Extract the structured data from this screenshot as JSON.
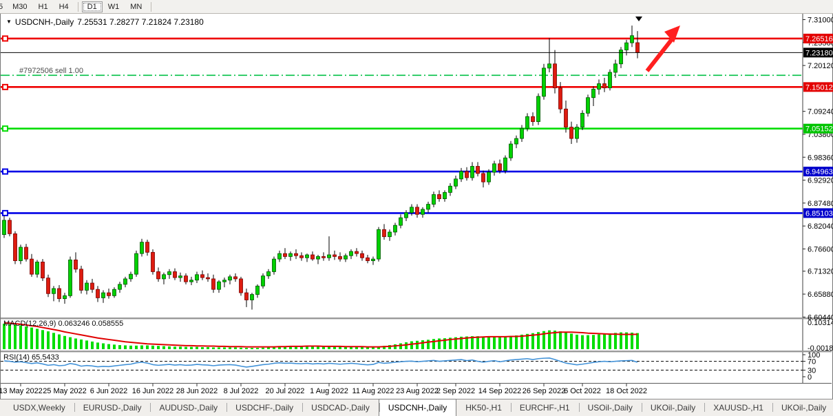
{
  "toolbar": {
    "timeframes": [
      "5",
      "M30",
      "H1",
      "H4",
      "D1",
      "W1",
      "MN"
    ],
    "active_timeframe": "D1"
  },
  "chart": {
    "title": "USDCNH-,Daily",
    "ohlc_display": "7.25531 7.28277 7.21824 7.23180",
    "order_label": "#7972506 sell 1.00",
    "price_axis_ticks": [
      "7.31000",
      "7.25560",
      "7.20120",
      "7.09240",
      "7.03800",
      "6.98360",
      "6.92920",
      "6.87480",
      "6.82040",
      "6.76600",
      "6.71320",
      "6.65880",
      "6.60440"
    ],
    "current_price": {
      "label": "7.23180",
      "price": 7.2318,
      "badge_bg": "#000000",
      "line_color": "#000000"
    },
    "levels": [
      {
        "label": "7.26516",
        "price": 7.26516,
        "color": "#ee0000",
        "badge_bg": "#e30000"
      },
      {
        "label": "7.15012",
        "price": 7.15012,
        "color": "#ee0000",
        "badge_bg": "#e30000"
      },
      {
        "label": "7.05152",
        "price": 7.05152,
        "color": "#00dd00",
        "badge_bg": "#00c400"
      },
      {
        "label": "6.94963",
        "price": 6.94963,
        "color": "#0000e6",
        "badge_bg": "#0000cc"
      },
      {
        "label": "6.85103",
        "price": 6.85103,
        "color": "#0000e6",
        "badge_bg": "#0000cc"
      }
    ],
    "order_line": {
      "price": 7.178,
      "color": "#00c044",
      "style": "dashdot"
    }
  },
  "chart_data": {
    "type": "candlestick",
    "symbol": "USDCNH-",
    "timeframe": "Daily",
    "title": "USDCNH-,Daily 7.25531 7.28277 7.21824 7.23180",
    "last_candle": {
      "open": 7.25531,
      "high": 7.28277,
      "low": 7.21824,
      "close": 7.2318
    },
    "y_axis_range": [
      6.6044,
      7.31
    ],
    "up_color": "#00d000",
    "down_color": "#dd1c10",
    "wick_color": "#000000",
    "date_labels": [
      {
        "index": 3,
        "text": "13 May 2022"
      },
      {
        "index": 11,
        "text": "25 May 2022"
      },
      {
        "index": 19,
        "text": "6 Jun 2022"
      },
      {
        "index": 27,
        "text": "16 Jun 2022"
      },
      {
        "index": 35,
        "text": "28 Jun 2022"
      },
      {
        "index": 43,
        "text": "8 Jul 2022"
      },
      {
        "index": 51,
        "text": "20 Jul 2022"
      },
      {
        "index": 59,
        "text": "1 Aug 2022"
      },
      {
        "index": 67,
        "text": "11 Aug 2022"
      },
      {
        "index": 75,
        "text": "23 Aug 2022"
      },
      {
        "index": 82,
        "text": "2 Sep 2022"
      },
      {
        "index": 90,
        "text": "14 Sep 2022"
      },
      {
        "index": 98,
        "text": "26 Sep 2022"
      },
      {
        "index": 105,
        "text": "6 Oct 2022"
      },
      {
        "index": 113,
        "text": "18 Oct 2022"
      }
    ],
    "candles": [
      [
        6.8,
        6.845,
        6.792,
        6.834
      ],
      [
        6.834,
        6.84,
        6.796,
        6.802
      ],
      [
        6.802,
        6.808,
        6.73,
        6.738
      ],
      [
        6.738,
        6.776,
        6.73,
        6.77
      ],
      [
        6.77,
        6.778,
        6.736,
        6.742
      ],
      [
        6.742,
        6.754,
        6.7,
        6.706
      ],
      [
        6.706,
        6.74,
        6.698,
        6.735
      ],
      [
        6.735,
        6.742,
        6.69,
        6.697
      ],
      [
        6.697,
        6.705,
        6.652,
        6.66
      ],
      [
        6.66,
        6.678,
        6.642,
        6.672
      ],
      [
        6.672,
        6.68,
        6.64,
        6.648
      ],
      [
        6.648,
        6.662,
        6.636,
        6.655
      ],
      [
        6.655,
        6.748,
        6.65,
        6.74
      ],
      [
        6.74,
        6.758,
        6.71,
        6.718
      ],
      [
        6.718,
        6.726,
        6.66,
        6.668
      ],
      [
        6.668,
        6.692,
        6.658,
        6.685
      ],
      [
        6.685,
        6.695,
        6.662,
        6.67
      ],
      [
        6.67,
        6.678,
        6.64,
        6.65
      ],
      [
        6.65,
        6.668,
        6.638,
        6.662
      ],
      [
        6.662,
        6.672,
        6.648,
        6.655
      ],
      [
        6.655,
        6.675,
        6.65,
        6.67
      ],
      [
        6.67,
        6.688,
        6.662,
        6.682
      ],
      [
        6.682,
        6.7,
        6.675,
        6.695
      ],
      [
        6.695,
        6.712,
        6.688,
        6.706
      ],
      [
        6.706,
        6.762,
        6.7,
        6.755
      ],
      [
        6.755,
        6.79,
        6.748,
        6.782
      ],
      [
        6.782,
        6.788,
        6.75,
        6.758
      ],
      [
        6.758,
        6.765,
        6.705,
        6.712
      ],
      [
        6.712,
        6.722,
        6.688,
        6.695
      ],
      [
        6.695,
        6.71,
        6.682,
        6.705
      ],
      [
        6.705,
        6.718,
        6.695,
        6.712
      ],
      [
        6.712,
        6.72,
        6.692,
        6.698
      ],
      [
        6.698,
        6.71,
        6.688,
        6.702
      ],
      [
        6.702,
        6.708,
        6.682,
        6.688
      ],
      [
        6.688,
        6.7,
        6.68,
        6.692
      ],
      [
        6.692,
        6.712,
        6.685,
        6.705
      ],
      [
        6.705,
        6.715,
        6.692,
        6.698
      ],
      [
        6.698,
        6.708,
        6.688,
        6.695
      ],
      [
        6.695,
        6.705,
        6.662,
        6.67
      ],
      [
        6.67,
        6.692,
        6.662,
        6.688
      ],
      [
        6.688,
        6.698,
        6.675,
        6.692
      ],
      [
        6.692,
        6.705,
        6.682,
        6.7
      ],
      [
        6.7,
        6.708,
        6.688,
        6.695
      ],
      [
        6.695,
        6.7,
        6.655,
        6.662
      ],
      [
        6.662,
        6.672,
        6.628,
        6.645
      ],
      [
        6.645,
        6.662,
        6.622,
        6.658
      ],
      [
        6.658,
        6.682,
        6.65,
        6.678
      ],
      [
        6.678,
        6.708,
        6.672,
        6.702
      ],
      [
        6.702,
        6.718,
        6.695,
        6.712
      ],
      [
        6.712,
        6.748,
        6.705,
        6.742
      ],
      [
        6.742,
        6.762,
        6.735,
        6.755
      ],
      [
        6.755,
        6.768,
        6.742,
        6.748
      ],
      [
        6.748,
        6.76,
        6.738,
        6.755
      ],
      [
        6.755,
        6.765,
        6.742,
        6.75
      ],
      [
        6.75,
        6.758,
        6.738,
        6.745
      ],
      [
        6.745,
        6.755,
        6.735,
        6.752
      ],
      [
        6.752,
        6.76,
        6.738,
        6.742
      ],
      [
        6.742,
        6.752,
        6.73,
        6.748
      ],
      [
        6.748,
        6.758,
        6.738,
        6.745
      ],
      [
        6.745,
        6.796,
        6.738,
        6.752
      ],
      [
        6.752,
        6.762,
        6.74,
        6.748
      ],
      [
        6.748,
        6.758,
        6.736,
        6.742
      ],
      [
        6.742,
        6.755,
        6.735,
        6.75
      ],
      [
        6.75,
        6.765,
        6.742,
        6.76
      ],
      [
        6.76,
        6.768,
        6.748,
        6.755
      ],
      [
        6.755,
        6.762,
        6.738,
        6.745
      ],
      [
        6.745,
        6.752,
        6.732,
        6.738
      ],
      [
        6.738,
        6.748,
        6.728,
        6.742
      ],
      [
        6.742,
        6.818,
        6.736,
        6.812
      ],
      [
        6.812,
        6.825,
        6.788,
        6.795
      ],
      [
        6.795,
        6.812,
        6.785,
        6.806
      ],
      [
        6.806,
        6.828,
        6.798,
        6.822
      ],
      [
        6.822,
        6.848,
        6.815,
        6.84
      ],
      [
        6.84,
        6.858,
        6.832,
        6.852
      ],
      [
        6.852,
        6.872,
        6.845,
        6.865
      ],
      [
        6.865,
        6.872,
        6.84,
        6.848
      ],
      [
        6.848,
        6.865,
        6.84,
        6.86
      ],
      [
        6.86,
        6.878,
        6.852,
        6.872
      ],
      [
        6.872,
        6.902,
        6.865,
        6.895
      ],
      [
        6.895,
        6.905,
        6.878,
        6.885
      ],
      [
        6.885,
        6.905,
        6.878,
        6.9
      ],
      [
        6.9,
        6.922,
        6.892,
        6.915
      ],
      [
        6.915,
        6.94,
        6.908,
        6.932
      ],
      [
        6.932,
        6.958,
        6.925,
        6.95
      ],
      [
        6.95,
        6.96,
        6.928,
        6.935
      ],
      [
        6.935,
        6.972,
        6.928,
        6.962
      ],
      [
        6.962,
        6.972,
        6.938,
        6.945
      ],
      [
        6.945,
        6.952,
        6.912,
        6.925
      ],
      [
        6.925,
        6.955,
        6.918,
        6.948
      ],
      [
        6.948,
        6.975,
        6.94,
        6.968
      ],
      [
        6.968,
        6.978,
        6.945,
        6.952
      ],
      [
        6.952,
        6.988,
        6.945,
        6.982
      ],
      [
        6.982,
        7.022,
        6.975,
        7.015
      ],
      [
        7.015,
        7.035,
        7.005,
        7.028
      ],
      [
        7.028,
        7.06,
        7.02,
        7.052
      ],
      [
        7.052,
        7.088,
        7.045,
        7.08
      ],
      [
        7.08,
        7.09,
        7.058,
        7.068
      ],
      [
        7.068,
        7.135,
        7.06,
        7.128
      ],
      [
        7.128,
        7.205,
        7.12,
        7.195
      ],
      [
        7.195,
        7.266,
        7.185,
        7.205
      ],
      [
        7.205,
        7.238,
        7.135,
        7.148
      ],
      [
        7.148,
        7.162,
        7.088,
        7.098
      ],
      [
        7.098,
        7.118,
        7.042,
        7.055
      ],
      [
        7.055,
        7.068,
        7.015,
        7.028
      ],
      [
        7.028,
        7.062,
        7.018,
        7.055
      ],
      [
        7.055,
        7.095,
        7.048,
        7.088
      ],
      [
        7.088,
        7.132,
        7.08,
        7.125
      ],
      [
        7.125,
        7.152,
        7.105,
        7.145
      ],
      [
        7.145,
        7.168,
        7.132,
        7.158
      ],
      [
        7.158,
        7.172,
        7.138,
        7.148
      ],
      [
        7.148,
        7.192,
        7.142,
        7.185
      ],
      [
        7.185,
        7.215,
        7.172,
        7.205
      ],
      [
        7.205,
        7.245,
        7.195,
        7.238
      ],
      [
        7.238,
        7.262,
        7.225,
        7.255
      ],
      [
        7.255,
        7.296,
        7.245,
        7.272
      ],
      [
        7.25531,
        7.28277,
        7.21824,
        7.2318
      ]
    ],
    "macd": {
      "display": "MACD(12,26,9) 0.063246 0.058555",
      "main_value": 0.063246,
      "signal_value": 0.058555,
      "axis_max": "0.103149",
      "axis_min": "-0.001805",
      "histogram_color": "#00dd00",
      "signal_color": "#e00000",
      "histogram": [
        0.1,
        0.098,
        0.096,
        0.093,
        0.089,
        0.085,
        0.08,
        0.075,
        0.07,
        0.064,
        0.058,
        0.052,
        0.047,
        0.042,
        0.038,
        0.034,
        0.03,
        0.026,
        0.023,
        0.02,
        0.018,
        0.016,
        0.015,
        0.014,
        0.014,
        0.015,
        0.015,
        0.014,
        0.013,
        0.012,
        0.011,
        0.01,
        0.01,
        0.009,
        0.009,
        0.009,
        0.008,
        0.008,
        0.007,
        0.007,
        0.007,
        0.007,
        0.007,
        0.006,
        0.005,
        0.005,
        0.005,
        0.006,
        0.007,
        0.009,
        0.01,
        0.011,
        0.012,
        0.012,
        0.012,
        0.011,
        0.011,
        0.01,
        0.01,
        0.011,
        0.01,
        0.01,
        0.009,
        0.009,
        0.009,
        0.008,
        0.007,
        0.007,
        0.01,
        0.013,
        0.016,
        0.019,
        0.023,
        0.027,
        0.031,
        0.033,
        0.035,
        0.037,
        0.04,
        0.042,
        0.043,
        0.045,
        0.047,
        0.049,
        0.05,
        0.051,
        0.051,
        0.05,
        0.049,
        0.048,
        0.048,
        0.049,
        0.051,
        0.054,
        0.057,
        0.06,
        0.063,
        0.067,
        0.071,
        0.074,
        0.073,
        0.07,
        0.066,
        0.061,
        0.057,
        0.055,
        0.055,
        0.056,
        0.058,
        0.06,
        0.062,
        0.064,
        0.066,
        0.066,
        0.065,
        0.063246
      ],
      "signal": [
        0.103,
        0.102,
        0.1,
        0.098,
        0.095,
        0.092,
        0.089,
        0.085,
        0.081,
        0.077,
        0.073,
        0.068,
        0.064,
        0.06,
        0.056,
        0.052,
        0.048,
        0.044,
        0.041,
        0.038,
        0.035,
        0.032,
        0.029,
        0.027,
        0.025,
        0.023,
        0.021,
        0.02,
        0.019,
        0.018,
        0.017,
        0.016,
        0.015,
        0.014,
        0.014,
        0.013,
        0.013,
        0.012,
        0.012,
        0.011,
        0.011,
        0.01,
        0.01,
        0.01,
        0.009,
        0.009,
        0.009,
        0.009,
        0.009,
        0.009,
        0.01,
        0.01,
        0.011,
        0.011,
        0.011,
        0.012,
        0.012,
        0.012,
        0.011,
        0.011,
        0.011,
        0.011,
        0.01,
        0.01,
        0.01,
        0.01,
        0.009,
        0.009,
        0.009,
        0.01,
        0.011,
        0.013,
        0.015,
        0.017,
        0.02,
        0.022,
        0.025,
        0.028,
        0.03,
        0.033,
        0.035,
        0.038,
        0.04,
        0.042,
        0.044,
        0.046,
        0.047,
        0.048,
        0.049,
        0.049,
        0.049,
        0.049,
        0.05,
        0.05,
        0.051,
        0.053,
        0.055,
        0.057,
        0.06,
        0.063,
        0.065,
        0.067,
        0.067,
        0.067,
        0.066,
        0.065,
        0.063,
        0.062,
        0.061,
        0.06,
        0.059,
        0.059,
        0.058,
        0.058,
        0.058,
        0.058555
      ]
    },
    "rsi": {
      "display": "RSI(14) 65.5433",
      "value": 65.5433,
      "axis_ticks": [
        "100",
        "70",
        "30",
        "0"
      ],
      "upper_level": 70,
      "lower_level": 30,
      "line_color": "#4292d8",
      "values": [
        72,
        70,
        66,
        68,
        64,
        60,
        63,
        58,
        52,
        55,
        50,
        52,
        60,
        56,
        48,
        51,
        49,
        45,
        47,
        46,
        49,
        52,
        55,
        57,
        63,
        66,
        62,
        55,
        52,
        54,
        56,
        53,
        55,
        52,
        53,
        56,
        54,
        53,
        50,
        53,
        54,
        55,
        53,
        48,
        44,
        47,
        51,
        55,
        57,
        61,
        63,
        61,
        62,
        60,
        59,
        61,
        58,
        60,
        58,
        61,
        59,
        57,
        59,
        61,
        59,
        56,
        54,
        56,
        65,
        61,
        63,
        66,
        68,
        70,
        71,
        68,
        70,
        72,
        74,
        70,
        72,
        74,
        76,
        78,
        73,
        76,
        70,
        66,
        70,
        73,
        68,
        72,
        76,
        78,
        80,
        82,
        78,
        82,
        84,
        85,
        78,
        70,
        62,
        58,
        54,
        57,
        61,
        65,
        68,
        70,
        68,
        70,
        72,
        73,
        74,
        65.5433
      ]
    },
    "annotations": {
      "red_arrow": {
        "shape": "arrow-up-right",
        "color": "#ff1f1f"
      },
      "shift_marker": {
        "shape": "triangle-down",
        "color": "#000000"
      }
    }
  },
  "tabs": {
    "items": [
      "USDX,Weekly",
      "EURUSD-,Daily",
      "AUDUSD-,Daily",
      "USDCHF-,Daily",
      "USDCAD-,Daily",
      "USDCNH-,Daily",
      "HK50-,H1",
      "EURCHF-,H1",
      "USOil-,Daily",
      "UKOil-,Daily",
      "XAUUSD-,H1",
      "UKOil-,Daily"
    ],
    "active": "USDCNH-,Daily",
    "scroll_left_icon": "◂",
    "scroll_right_icon": "▸"
  }
}
